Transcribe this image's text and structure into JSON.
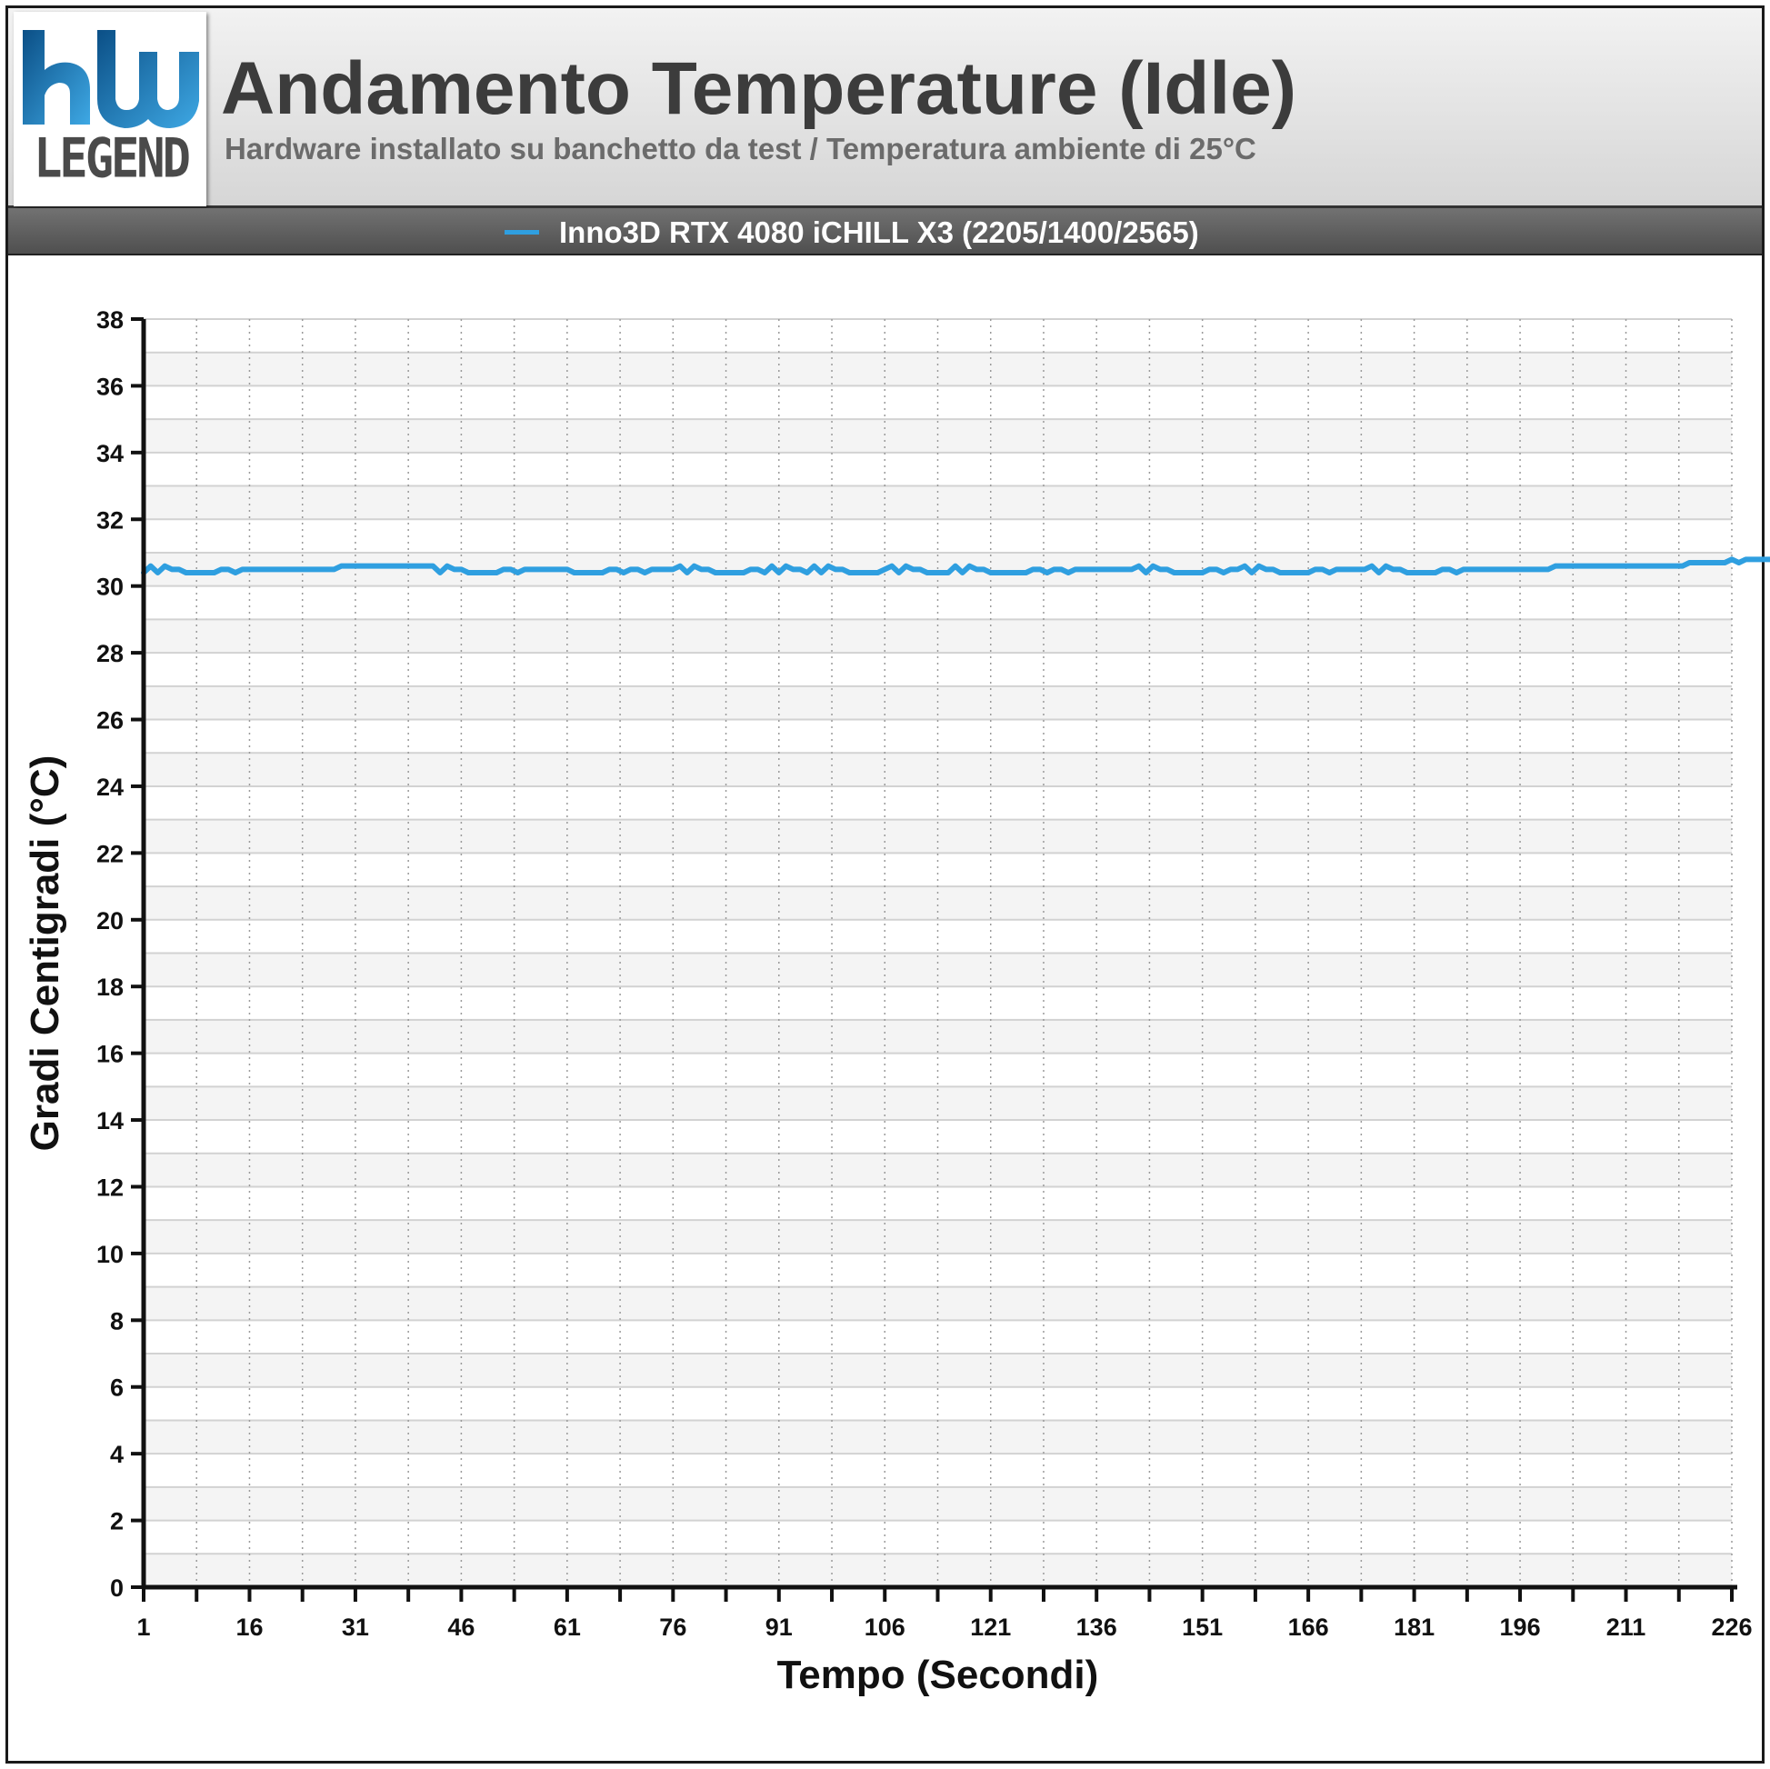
{
  "header": {
    "title": "Andamento Temperature (Idle)",
    "subtitle": "Hardware installato su banchetto da test / Temperatura ambiente di 25°C",
    "logo_text": "LEGEND"
  },
  "chart_data": {
    "type": "line",
    "title": "Andamento Temperature (Idle)",
    "subtitle": "Hardware installato su banchetto da test / Temperatura ambiente di 25°C",
    "xlabel": "Tempo (Secondi)",
    "ylabel": "Gradi Centigradi (°C)",
    "xlim": [
      1,
      226
    ],
    "ylim": [
      0,
      38
    ],
    "x_ticks": [
      1,
      16,
      31,
      46,
      61,
      76,
      91,
      106,
      121,
      136,
      151,
      166,
      181,
      196,
      211,
      226
    ],
    "y_ticks": [
      0,
      2,
      4,
      6,
      8,
      10,
      12,
      14,
      16,
      18,
      20,
      22,
      24,
      26,
      28,
      30,
      32,
      34,
      36,
      38
    ],
    "grid": true,
    "legend_position": "top",
    "series": [
      {
        "name": "Inno3D RTX 4080 iCHILL X3 (2205/1400/2565)",
        "color": "#2f9fe0",
        "x_start": 1,
        "x_step": 1,
        "values": [
          30.4,
          30.6,
          30.4,
          30.6,
          30.5,
          30.5,
          30.4,
          30.4,
          30.4,
          30.4,
          30.4,
          30.5,
          30.5,
          30.4,
          30.5,
          30.5,
          30.5,
          30.5,
          30.5,
          30.5,
          30.5,
          30.5,
          30.5,
          30.5,
          30.5,
          30.5,
          30.5,
          30.5,
          30.6,
          30.6,
          30.6,
          30.6,
          30.6,
          30.6,
          30.6,
          30.6,
          30.6,
          30.6,
          30.6,
          30.6,
          30.6,
          30.6,
          30.4,
          30.6,
          30.5,
          30.5,
          30.4,
          30.4,
          30.4,
          30.4,
          30.4,
          30.5,
          30.5,
          30.4,
          30.5,
          30.5,
          30.5,
          30.5,
          30.5,
          30.5,
          30.5,
          30.4,
          30.4,
          30.4,
          30.4,
          30.4,
          30.5,
          30.5,
          30.4,
          30.5,
          30.5,
          30.4,
          30.5,
          30.5,
          30.5,
          30.5,
          30.6,
          30.4,
          30.6,
          30.5,
          30.5,
          30.4,
          30.4,
          30.4,
          30.4,
          30.4,
          30.5,
          30.5,
          30.4,
          30.6,
          30.4,
          30.6,
          30.5,
          30.5,
          30.4,
          30.6,
          30.4,
          30.6,
          30.5,
          30.5,
          30.4,
          30.4,
          30.4,
          30.4,
          30.4,
          30.5,
          30.6,
          30.4,
          30.6,
          30.5,
          30.5,
          30.4,
          30.4,
          30.4,
          30.4,
          30.6,
          30.4,
          30.6,
          30.5,
          30.5,
          30.4,
          30.4,
          30.4,
          30.4,
          30.4,
          30.4,
          30.5,
          30.5,
          30.4,
          30.5,
          30.5,
          30.4,
          30.5,
          30.5,
          30.5,
          30.5,
          30.5,
          30.5,
          30.5,
          30.5,
          30.5,
          30.6,
          30.4,
          30.6,
          30.5,
          30.5,
          30.4,
          30.4,
          30.4,
          30.4,
          30.4,
          30.5,
          30.5,
          30.4,
          30.5,
          30.5,
          30.6,
          30.4,
          30.6,
          30.5,
          30.5,
          30.4,
          30.4,
          30.4,
          30.4,
          30.4,
          30.5,
          30.5,
          30.4,
          30.5,
          30.5,
          30.5,
          30.5,
          30.5,
          30.6,
          30.4,
          30.6,
          30.5,
          30.5,
          30.4,
          30.4,
          30.4,
          30.4,
          30.4,
          30.5,
          30.5,
          30.4,
          30.5,
          30.5,
          30.5,
          30.5,
          30.5,
          30.5,
          30.5,
          30.5,
          30.5,
          30.5,
          30.5,
          30.5,
          30.5,
          30.6,
          30.6,
          30.6,
          30.6,
          30.6,
          30.6,
          30.6,
          30.6,
          30.6,
          30.6,
          30.6,
          30.6,
          30.6,
          30.6,
          30.6,
          30.6,
          30.6,
          30.6,
          30.6,
          30.7,
          30.7,
          30.7,
          30.7,
          30.7,
          30.7,
          30.8,
          30.7,
          30.8,
          30.8,
          30.8,
          30.8,
          30.8,
          30.8,
          30.8
        ]
      }
    ]
  }
}
